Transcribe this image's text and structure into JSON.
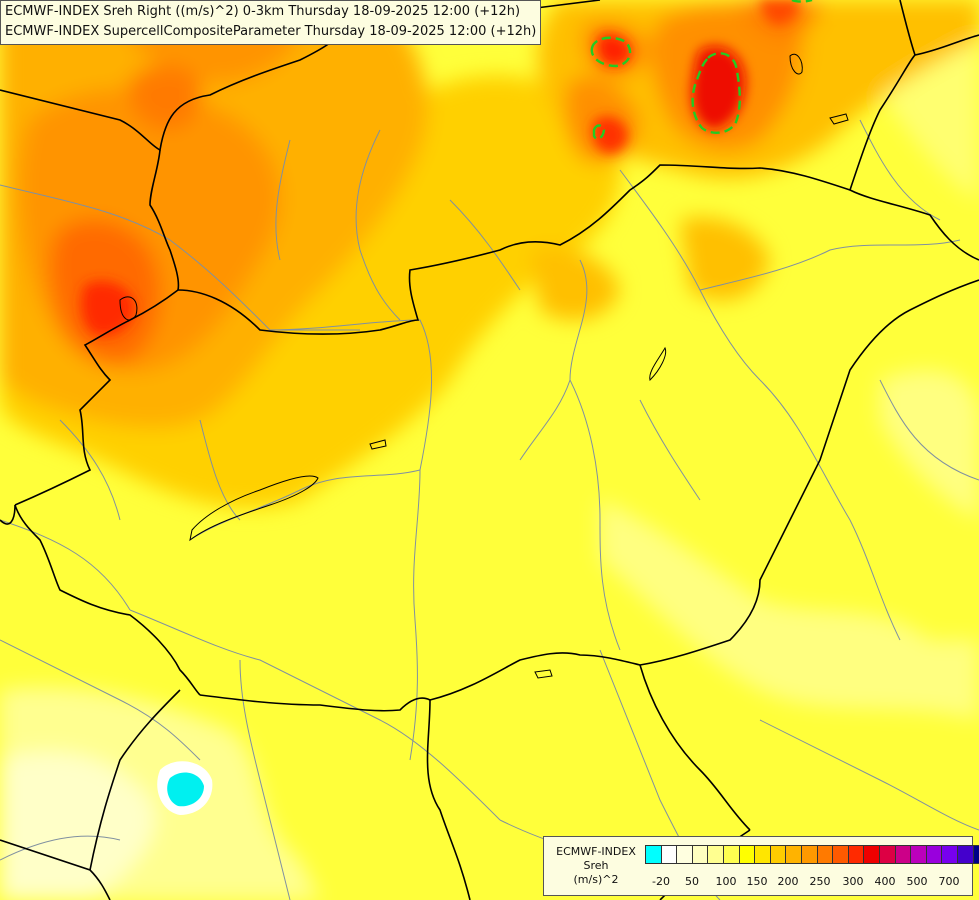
{
  "title_lines": [
    "ECMWF-INDEX Sreh Right ((m/s)^2) 0-3km Thursday 18-09-2025 12:00 (+12h)",
    "ECMWF-INDEX SupercellCompositeParameter Thursday 18-09-2025 12:00 (+12h)"
  ],
  "legend": {
    "title": "ECMWF-INDEX",
    "variable": "Sreh",
    "unit": "(m/s)^2",
    "colors": [
      "#00ffff",
      "#ffffff",
      "#ffffe0",
      "#ffffc0",
      "#ffff90",
      "#ffff50",
      "#ffff00",
      "#ffe600",
      "#ffcc00",
      "#ffb300",
      "#ff9900",
      "#ff7a00",
      "#ff5a00",
      "#ff2a00",
      "#ee0000",
      "#dd0044",
      "#cc0088",
      "#bb00bb",
      "#9900dd",
      "#7700ee",
      "#4400cc",
      "#000088"
    ],
    "ticks": [
      "-20",
      "50",
      "100",
      "150",
      "200",
      "250",
      "300",
      "400",
      "500",
      "700"
    ]
  },
  "colors": {
    "background": "#ffff40",
    "border_line": "#000000",
    "river_line": "#7a8a99",
    "scp_contour": "#22cc22"
  }
}
